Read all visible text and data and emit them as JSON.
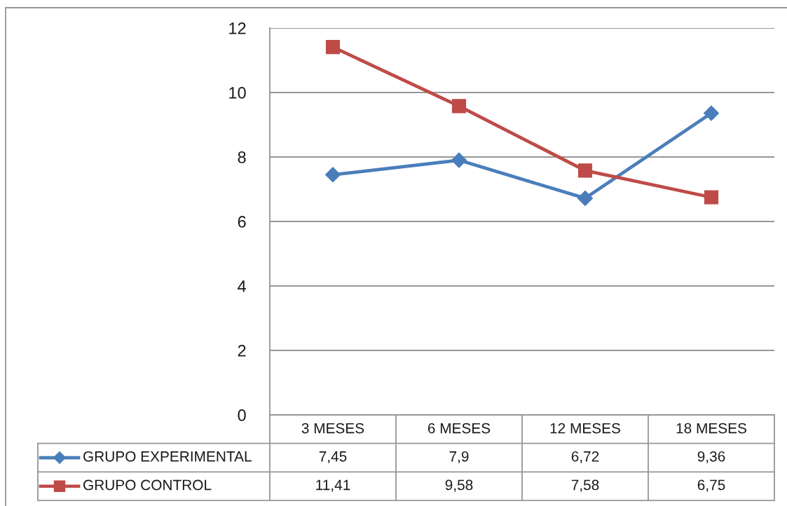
{
  "chart_data": {
    "type": "line",
    "categories": [
      "3 MESES",
      "6 MESES",
      "12 MESES",
      "18 MESES"
    ],
    "series": [
      {
        "name": "GRUPO EXPERIMENTAL",
        "color": "#4a7ebb",
        "marker": "diamond",
        "values": [
          7.45,
          7.9,
          6.72,
          9.36
        ],
        "value_labels": [
          "7,45",
          "7,9",
          "6,72",
          "9,36"
        ]
      },
      {
        "name": "GRUPO CONTROL",
        "color": "#be4b48",
        "marker": "square",
        "values": [
          11.41,
          9.58,
          7.58,
          6.75
        ],
        "value_labels": [
          "11,41",
          "9,58",
          "7,58",
          "6,75"
        ]
      }
    ],
    "ylim": [
      0,
      12
    ],
    "yticks": [
      0,
      2,
      4,
      6,
      8,
      10,
      12
    ],
    "grid": "y",
    "legend": "bottom"
  }
}
